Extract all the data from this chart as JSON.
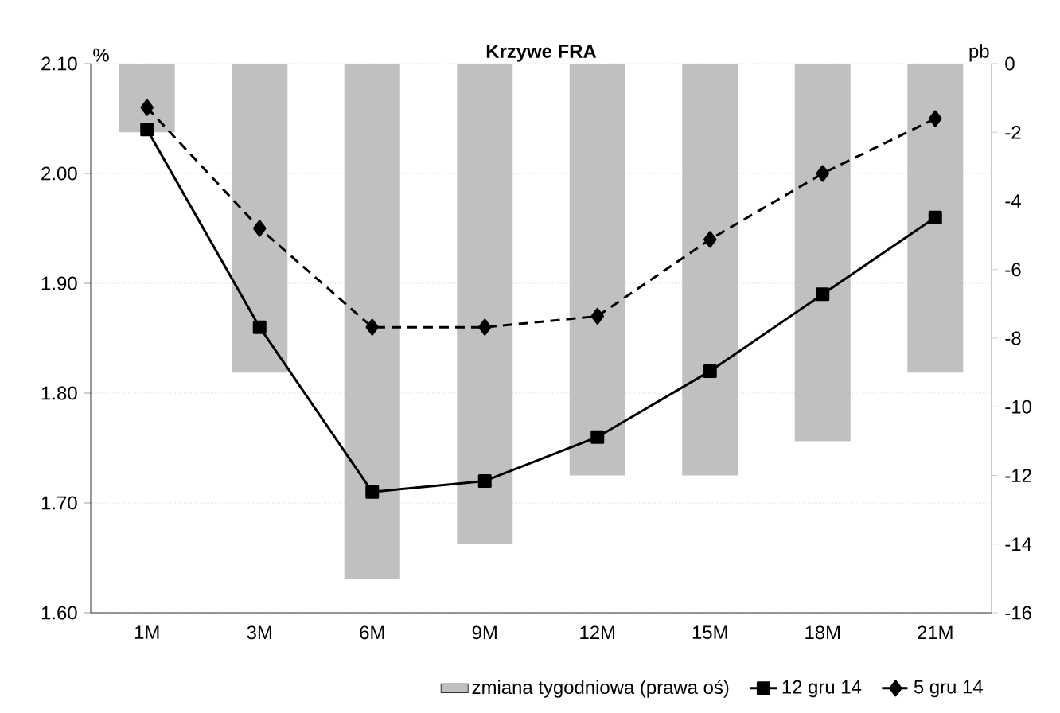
{
  "chart_data": {
    "type": "line",
    "title": "Krzywe FRA",
    "ylabel": "%",
    "y2label": "pb",
    "categories": [
      "1M",
      "3M",
      "6M",
      "9M",
      "12M",
      "15M",
      "18M",
      "21M"
    ],
    "series": [
      {
        "name": "zmiana tygodniowa (prawa oś)",
        "type": "bar",
        "axis": "y2",
        "color": "#c0c0c0",
        "values": [
          -2,
          -9,
          -15,
          -14,
          -12,
          -12,
          -11,
          -9
        ]
      },
      {
        "name": "12 gru 14",
        "color": "#000000",
        "marker": "square",
        "line_style": "solid",
        "values": [
          2.04,
          1.86,
          1.71,
          1.72,
          1.76,
          1.82,
          1.89,
          1.96
        ]
      },
      {
        "name": "5 gru 14",
        "color": "#000000",
        "marker": "diamond",
        "line_style": "dashed",
        "values": [
          2.06,
          1.95,
          1.86,
          1.86,
          1.87,
          1.94,
          2.0,
          2.05
        ]
      }
    ],
    "ylim": [
      1.6,
      2.1
    ],
    "yticks": [
      {
        "value": 1.6,
        "label": "1.60"
      },
      {
        "value": 1.7,
        "label": "1.70"
      },
      {
        "value": 1.8,
        "label": "1.80"
      },
      {
        "value": 1.9,
        "label": "1.90"
      },
      {
        "value": 2.0,
        "label": "2.00"
      },
      {
        "value": 2.1,
        "label": "2.10"
      }
    ],
    "y2lim": [
      -16,
      0
    ],
    "y2ticks": [
      -16,
      -14,
      -12,
      -10,
      -8,
      -6,
      -4,
      -2,
      0
    ],
    "grid": "y",
    "legend": "bottom"
  }
}
